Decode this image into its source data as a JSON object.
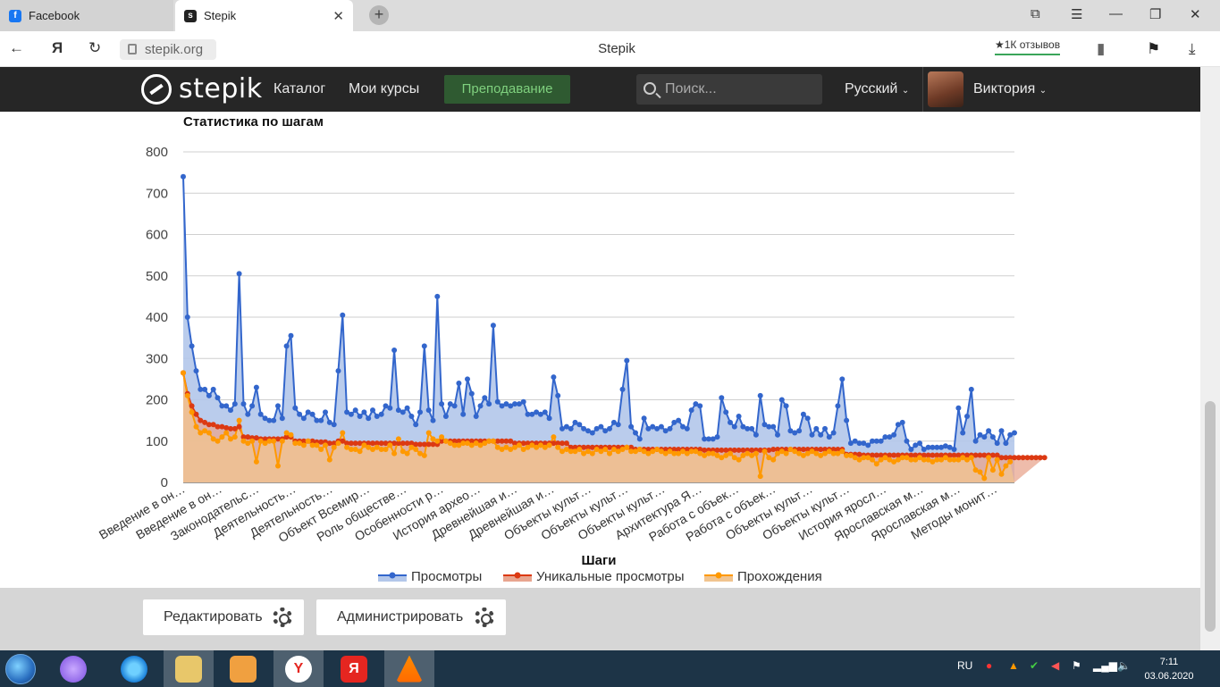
{
  "browser": {
    "tabs": [
      {
        "label": "Facebook",
        "active": false,
        "favicon": "facebook-icon",
        "favicon_color": "#1877f2"
      },
      {
        "label": "Stepik",
        "active": true,
        "favicon": "stepik-icon",
        "favicon_color": "#222222"
      }
    ],
    "url": "stepik.org",
    "page_title": "Stepik",
    "reviews_badge": "★1К отзывов"
  },
  "header": {
    "logo_text": "stepik",
    "nav": [
      "Каталог",
      "Мои курсы"
    ],
    "teach_label": "Преподавание",
    "search_placeholder": "Поиск...",
    "language": "Русский",
    "user_name": "Виктория"
  },
  "chart_data": {
    "type": "area",
    "title": "Статистика по шагам",
    "xlabel": "Шаги",
    "ylabel": "",
    "ylim": [
      0,
      800
    ],
    "yticks": [
      0,
      100,
      200,
      300,
      400,
      500,
      600,
      700,
      800
    ],
    "grid": true,
    "legend_position": "bottom",
    "tick_labels": [
      "Введение в он…",
      "Введение в он…",
      "Законодательс…",
      "Деятельность…",
      "Деятельность…",
      "Объект Всемир…",
      "Роль обществе…",
      "Особенности р…",
      "История архео…",
      "Древнейшая и…",
      "Древнейшая и…",
      "Объекты культ…",
      "Объекты культ…",
      "Объекты культ…",
      "Архитектура Я…",
      "Работа с объек…",
      "Работа с объек…",
      "Объекты культ…",
      "Объекты культ…",
      "История яросл…",
      "Ярославская м…",
      "Ярославская м…",
      "Методы монит…"
    ],
    "series": [
      {
        "name": "Просмотры",
        "color": "#3366cc",
        "fill": "#b3c7ea",
        "values": [
          740,
          400,
          330,
          270,
          225,
          225,
          210,
          225,
          205,
          185,
          185,
          175,
          190,
          505,
          190,
          165,
          185,
          230,
          165,
          155,
          150,
          150,
          185,
          155,
          330,
          355,
          180,
          165,
          155,
          170,
          165,
          150,
          150,
          170,
          145,
          140,
          270,
          405,
          170,
          165,
          175,
          160,
          170,
          155,
          175,
          160,
          165,
          185,
          180,
          320,
          175,
          170,
          180,
          160,
          140,
          170,
          330,
          175,
          150,
          450,
          190,
          160,
          190,
          185,
          240,
          165,
          250,
          215,
          160,
          185,
          205,
          190,
          380,
          195,
          185,
          190,
          185,
          190,
          190,
          195,
          165,
          165,
          170,
          165,
          170,
          155,
          255,
          210,
          130,
          135,
          130,
          145,
          140,
          130,
          125,
          120,
          130,
          135,
          125,
          130,
          145,
          140,
          225,
          295,
          135,
          120,
          105,
          155,
          130,
          135,
          130,
          135,
          125,
          130,
          145,
          150,
          135,
          130,
          175,
          190,
          185,
          105,
          105,
          105,
          110,
          205,
          170,
          145,
          135,
          160,
          135,
          130,
          130,
          115,
          210,
          140,
          135,
          135,
          115,
          200,
          185,
          125,
          120,
          125,
          165,
          155,
          115,
          130,
          115,
          130,
          110,
          120,
          185,
          250,
          150,
          95,
          100,
          95,
          95,
          90,
          100,
          100,
          100,
          110,
          110,
          115,
          140,
          145,
          100,
          80,
          90,
          95,
          80,
          85,
          85,
          85,
          85,
          88,
          85,
          80,
          180,
          120,
          160,
          225,
          100,
          115,
          110,
          125,
          110,
          95,
          125,
          95,
          115,
          120
        ]
      },
      {
        "name": "Уникальные просмотры",
        "color": "#dc3912",
        "fill": "#e8a58f",
        "values": [
          265,
          215,
          185,
          165,
          150,
          145,
          140,
          140,
          135,
          135,
          132,
          130,
          130,
          135,
          110,
          110,
          108,
          108,
          105,
          105,
          105,
          105,
          105,
          105,
          110,
          110,
          100,
          100,
          100,
          100,
          100,
          98,
          98,
          98,
          95,
          95,
          100,
          100,
          95,
          95,
          95,
          95,
          95,
          95,
          95,
          95,
          95,
          95,
          95,
          95,
          95,
          95,
          95,
          95,
          92,
          92,
          92,
          92,
          92,
          92,
          100,
          100,
          100,
          100,
          100,
          100,
          100,
          100,
          100,
          100,
          100,
          100,
          100,
          100,
          100,
          100,
          100,
          95,
          95,
          95,
          95,
          95,
          95,
          95,
          95,
          95,
          95,
          95,
          95,
          95,
          85,
          85,
          85,
          85,
          85,
          85,
          85,
          85,
          85,
          85,
          85,
          85,
          85,
          85,
          85,
          80,
          80,
          80,
          80,
          80,
          80,
          80,
          80,
          80,
          80,
          80,
          80,
          80,
          80,
          80,
          80,
          78,
          78,
          78,
          78,
          78,
          78,
          78,
          78,
          78,
          78,
          78,
          78,
          78,
          78,
          78,
          78,
          80,
          80,
          80,
          80,
          80,
          80,
          80,
          80,
          80,
          80,
          80,
          80,
          80,
          80,
          80,
          80,
          80,
          68,
          68,
          68,
          68,
          66,
          66,
          66,
          66,
          66,
          66,
          66,
          66,
          66,
          66,
          66,
          66,
          66,
          66,
          66,
          66,
          66,
          66,
          66,
          66,
          66,
          66,
          66,
          66,
          66,
          66,
          66,
          66,
          66,
          66,
          66,
          66,
          60,
          60,
          60,
          60,
          60,
          60,
          60,
          60,
          60,
          60,
          60
        ]
      },
      {
        "name": "Прохождения",
        "color": "#ff9900",
        "fill": "#f1c48f",
        "values": [
          265,
          210,
          170,
          135,
          120,
          125,
          120,
          105,
          100,
          110,
          120,
          105,
          110,
          150,
          100,
          95,
          100,
          50,
          100,
          95,
          100,
          100,
          40,
          100,
          120,
          115,
          95,
          95,
          90,
          100,
          90,
          90,
          80,
          90,
          55,
          85,
          95,
          120,
          85,
          80,
          80,
          75,
          90,
          85,
          80,
          85,
          80,
          80,
          90,
          70,
          105,
          75,
          70,
          85,
          80,
          70,
          65,
          120,
          105,
          100,
          110,
          100,
          95,
          90,
          90,
          95,
          95,
          90,
          95,
          90,
          95,
          100,
          100,
          85,
          80,
          85,
          80,
          85,
          90,
          80,
          85,
          90,
          85,
          90,
          85,
          90,
          110,
          85,
          75,
          80,
          75,
          75,
          80,
          70,
          75,
          70,
          80,
          75,
          80,
          70,
          80,
          75,
          80,
          85,
          75,
          75,
          80,
          75,
          70,
          75,
          80,
          75,
          70,
          75,
          70,
          70,
          75,
          70,
          75,
          75,
          70,
          65,
          70,
          70,
          65,
          60,
          65,
          70,
          60,
          55,
          65,
          70,
          65,
          70,
          15,
          75,
          60,
          55,
          70,
          75,
          70,
          80,
          75,
          70,
          65,
          70,
          75,
          70,
          65,
          70,
          75,
          70,
          70,
          75,
          65,
          65,
          60,
          55,
          60,
          60,
          55,
          45,
          55,
          60,
          55,
          50,
          55,
          60,
          60,
          55,
          55,
          60,
          55,
          55,
          50,
          55,
          55,
          60,
          55,
          55,
          55,
          60,
          55,
          60,
          30,
          25,
          10,
          60,
          30,
          55,
          20,
          40,
          50
        ]
      }
    ]
  },
  "actions": {
    "edit_label": "Редактировать",
    "admin_label": "Администрировать"
  },
  "taskbar": {
    "lang": "RU",
    "time": "7:11",
    "date": "03.06.2020"
  }
}
